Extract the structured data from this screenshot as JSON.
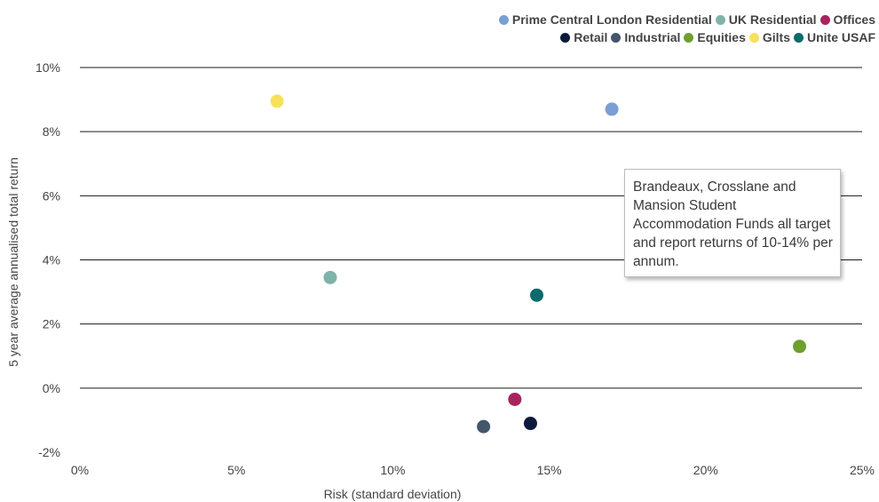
{
  "chart_data": {
    "type": "scatter",
    "title": "",
    "xlabel": "Risk (standard deviation)",
    "ylabel": "5 year average annualised total return",
    "xlim": [
      0,
      25
    ],
    "ylim": [
      -2,
      10
    ],
    "x_ticks": [
      "0%",
      "5%",
      "10%",
      "15%",
      "20%",
      "25%"
    ],
    "y_ticks": [
      "-2%",
      "0%",
      "2%",
      "4%",
      "6%",
      "8%",
      "10%"
    ],
    "grid": "horizontal",
    "legend_position": "top-right",
    "series": [
      {
        "name": "Prime Central London Residential",
        "color": "#7a9fd4",
        "points": [
          {
            "x": 17.0,
            "y": 8.7
          }
        ]
      },
      {
        "name": "UK Residential",
        "color": "#7fb3aa",
        "points": [
          {
            "x": 8.0,
            "y": 3.45
          }
        ]
      },
      {
        "name": "Offices",
        "color": "#a8245e",
        "points": [
          {
            "x": 13.9,
            "y": -0.35
          }
        ]
      },
      {
        "name": "Retail",
        "color": "#0c1a3c",
        "points": [
          {
            "x": 14.4,
            "y": -1.1
          }
        ]
      },
      {
        "name": "Industrial",
        "color": "#44566a",
        "points": [
          {
            "x": 12.9,
            "y": -1.2
          }
        ]
      },
      {
        "name": "Equities",
        "color": "#6e9f2f",
        "points": [
          {
            "x": 23.0,
            "y": 1.3
          }
        ]
      },
      {
        "name": "Gilts",
        "color": "#f7e15a",
        "points": [
          {
            "x": 6.3,
            "y": 8.95
          }
        ]
      },
      {
        "name": "Unite USAF",
        "color": "#0e6b6c",
        "points": [
          {
            "x": 14.6,
            "y": 2.9
          }
        ]
      }
    ],
    "annotation": "Brandeaux, Crosslane and Mansion Student Accommodation Funds all target and report returns of 10-14% per annum."
  }
}
